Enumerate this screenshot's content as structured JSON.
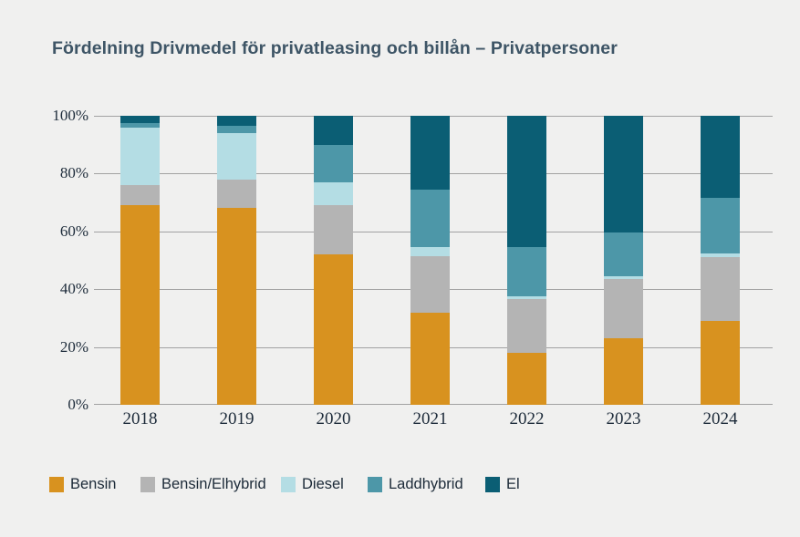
{
  "title": "Fördelning Drivmedel för privatleasing och billån – Privatpersoner",
  "colors": {
    "background": "#f0f0ef",
    "title_text": "#3e5566",
    "axis_text": "#1d2b3a",
    "gridline": "#a2a2a2",
    "bensin": "#d8921f",
    "bensin_elhybrid": "#b4b4b4",
    "diesel": "#b4dde4",
    "laddhybrid": "#4d97a8",
    "el": "#0b5e74"
  },
  "chart_data": {
    "type": "bar",
    "subtype": "stacked-percent",
    "title": "Fördelning Drivmedel för privatleasing och billån – Privatpersoner",
    "categories": [
      "2018",
      "2019",
      "2020",
      "2021",
      "2022",
      "2023",
      "2024"
    ],
    "series": [
      {
        "name": "Bensin",
        "color": "#d8921f",
        "values": [
          69,
          68,
          52,
          32,
          18,
          23,
          29
        ]
      },
      {
        "name": "Bensin/Elhybrid",
        "color": "#b4b4b4",
        "values": [
          7,
          10,
          17,
          19.5,
          18.5,
          20.5,
          22
        ]
      },
      {
        "name": "Diesel",
        "color": "#b4dde4",
        "values": [
          20,
          16,
          8,
          3,
          1,
          1,
          1.5
        ]
      },
      {
        "name": "Laddhybrid",
        "color": "#4d97a8",
        "values": [
          1.5,
          2.5,
          13,
          20,
          17,
          15,
          19
        ]
      },
      {
        "name": "El",
        "color": "#0b5e74",
        "values": [
          2.5,
          3.5,
          10,
          25.5,
          45.5,
          40.5,
          28.5
        ]
      }
    ],
    "xlabel": "",
    "ylabel": "",
    "ylim": [
      0,
      100
    ],
    "y_ticks": [
      "0%",
      "20%",
      "40%",
      "60%",
      "80%",
      "100%"
    ],
    "grid": true,
    "legend_position": "bottom"
  },
  "legend": {
    "items": [
      {
        "label": "Bensin"
      },
      {
        "label": "Bensin/Elhybrid"
      },
      {
        "label": "Diesel"
      },
      {
        "label": "Laddhybrid"
      },
      {
        "label": "El"
      }
    ]
  }
}
